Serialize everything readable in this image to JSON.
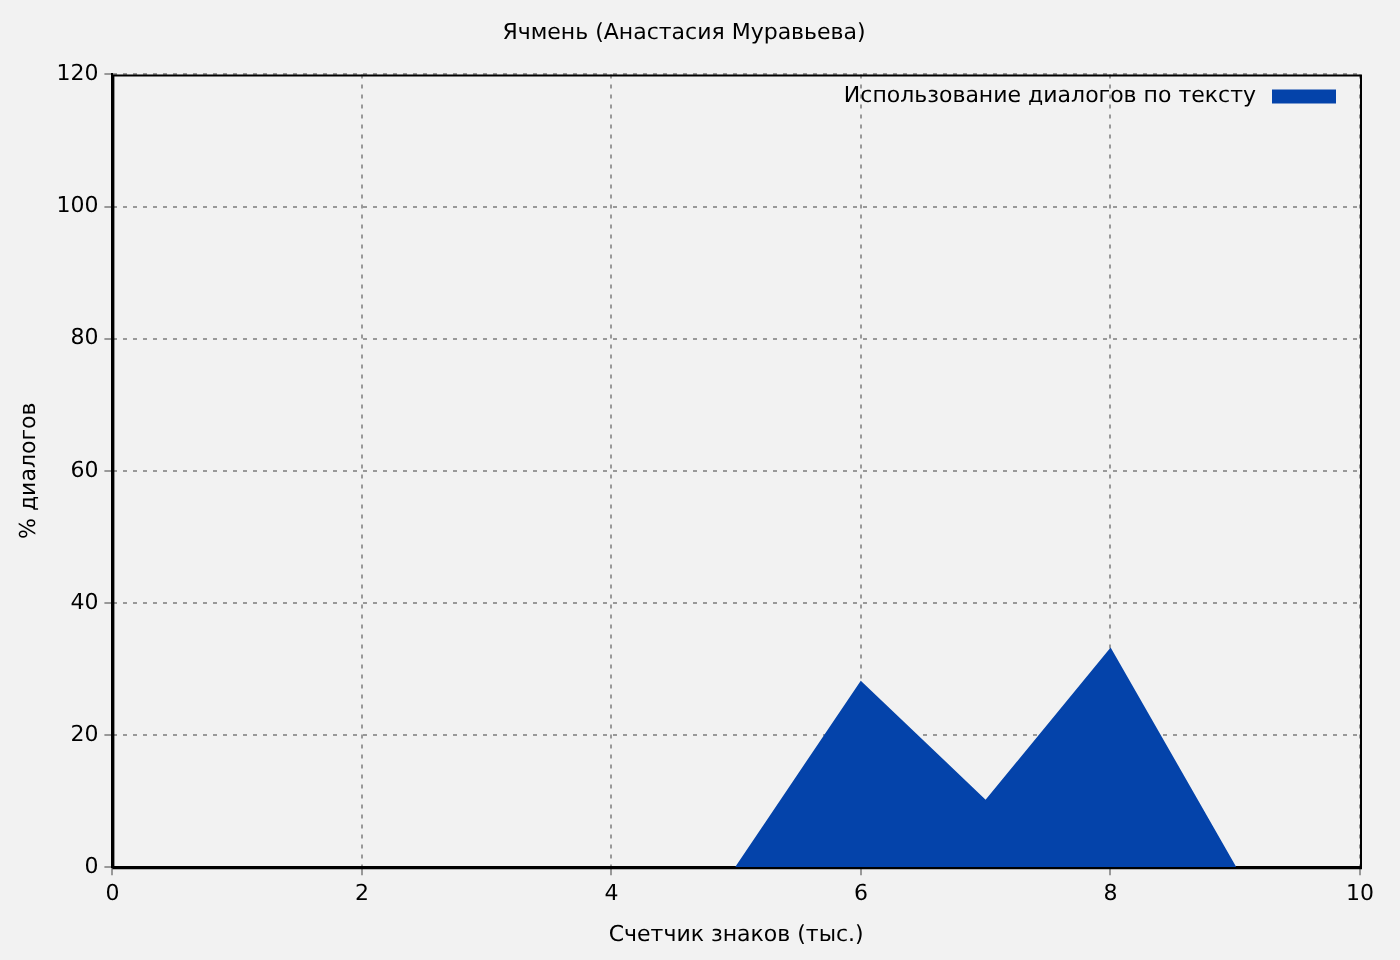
{
  "chart_data": {
    "type": "area",
    "title": "Ячмень (Анастасия Муравьева)",
    "xlabel": "Счетчик знаков (тыс.)",
    "ylabel": "% диалогов",
    "x": [
      5,
      6,
      7,
      8,
      9
    ],
    "series": [
      {
        "name": "Использование диалогов по тексту",
        "color": "#0443aa",
        "values": [
          0,
          28,
          10,
          33,
          0
        ]
      }
    ],
    "xlim": [
      0,
      10
    ],
    "xticks": [
      0,
      2,
      4,
      6,
      8,
      10
    ],
    "ylim": [
      0,
      120
    ],
    "yticks": [
      0,
      20,
      40,
      60,
      80,
      100,
      120
    ],
    "grid": true,
    "legend": "top right"
  }
}
